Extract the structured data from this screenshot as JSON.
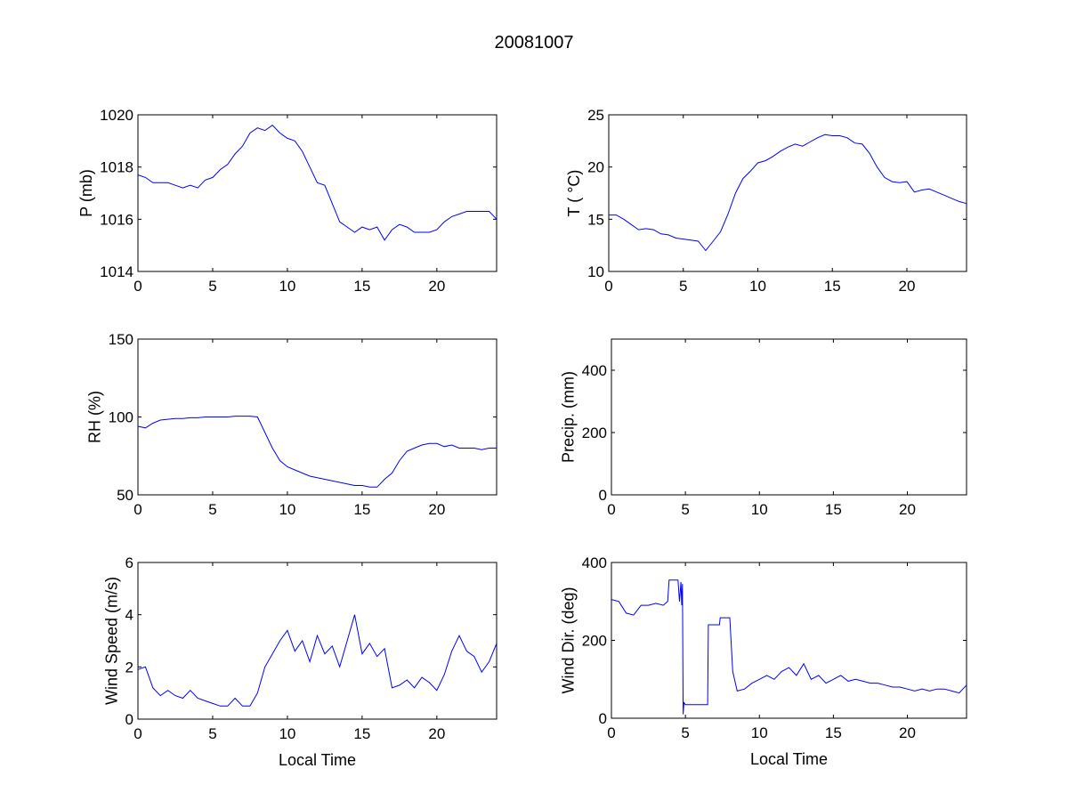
{
  "title": "20081007",
  "colors": {
    "line": "#0000ff",
    "axis": "#000000",
    "background": "#ffffff"
  },
  "chart_data": [
    {
      "type": "line",
      "name": "pressure",
      "ylabel": "P (mb)",
      "xlabel": "",
      "xlim": [
        0,
        24
      ],
      "ylim": [
        1014,
        1020
      ],
      "xticks": [
        0,
        5,
        10,
        15,
        20
      ],
      "yticks": [
        1014,
        1016,
        1018,
        1020
      ],
      "x": [
        0,
        0.5,
        1,
        1.5,
        2,
        2.5,
        3,
        3.5,
        4,
        4.5,
        5,
        5.5,
        6,
        6.5,
        7,
        7.5,
        8,
        8.5,
        9,
        9.5,
        10,
        10.5,
        11,
        11.5,
        12,
        12.5,
        13,
        13.5,
        14,
        14.5,
        15,
        15.5,
        16,
        16.5,
        17,
        17.5,
        18,
        18.5,
        19,
        19.5,
        20,
        20.5,
        21,
        21.5,
        22,
        22.5,
        23,
        23.5,
        24
      ],
      "y": [
        1017.7,
        1017.6,
        1017.4,
        1017.4,
        1017.4,
        1017.3,
        1017.2,
        1017.3,
        1017.2,
        1017.5,
        1017.6,
        1017.9,
        1018.1,
        1018.5,
        1018.8,
        1019.3,
        1019.5,
        1019.4,
        1019.6,
        1019.3,
        1019.1,
        1019.0,
        1018.6,
        1018.0,
        1017.4,
        1017.3,
        1016.6,
        1015.9,
        1015.7,
        1015.5,
        1015.7,
        1015.6,
        1015.7,
        1015.2,
        1015.6,
        1015.8,
        1015.7,
        1015.5,
        1015.5,
        1015.5,
        1015.6,
        1015.9,
        1016.1,
        1016.2,
        1016.3,
        1016.3,
        1016.3,
        1016.3,
        1016.0
      ]
    },
    {
      "type": "line",
      "name": "temperature",
      "ylabel": "T ( °C)",
      "xlabel": "",
      "xlim": [
        0,
        24
      ],
      "ylim": [
        10,
        25
      ],
      "xticks": [
        0,
        5,
        10,
        15,
        20
      ],
      "yticks": [
        10,
        15,
        20,
        25
      ],
      "x": [
        0,
        0.5,
        1,
        1.5,
        2,
        2.5,
        3,
        3.5,
        4,
        4.5,
        5,
        5.5,
        6,
        6.5,
        7,
        7.5,
        8,
        8.5,
        9,
        9.5,
        10,
        10.5,
        11,
        11.5,
        12,
        12.5,
        13,
        13.5,
        14,
        14.5,
        15,
        15.5,
        16,
        16.5,
        17,
        17.5,
        18,
        18.5,
        19,
        19.5,
        20,
        20.5,
        21,
        21.5,
        22,
        22.5,
        23,
        23.5,
        24
      ],
      "y": [
        15.4,
        15.4,
        15.0,
        14.5,
        14.0,
        14.1,
        14.0,
        13.6,
        13.5,
        13.2,
        13.1,
        13.0,
        12.9,
        12.0,
        12.9,
        13.8,
        15.5,
        17.5,
        18.9,
        19.6,
        20.4,
        20.6,
        21.0,
        21.5,
        21.9,
        22.2,
        22.0,
        22.4,
        22.8,
        23.1,
        23.0,
        23.0,
        22.8,
        22.3,
        22.2,
        21.3,
        20.0,
        19.0,
        18.6,
        18.5,
        18.6,
        17.6,
        17.8,
        17.9,
        17.6,
        17.3,
        17.0,
        16.7,
        16.5
      ]
    },
    {
      "type": "line",
      "name": "relative-humidity",
      "ylabel": "RH (%)",
      "xlabel": "",
      "xlim": [
        0,
        24
      ],
      "ylim": [
        50,
        150
      ],
      "xticks": [
        0,
        5,
        10,
        15,
        20
      ],
      "yticks": [
        50,
        100,
        150
      ],
      "x": [
        0,
        0.5,
        1,
        1.5,
        2,
        2.5,
        3,
        3.5,
        4,
        4.5,
        5,
        5.5,
        6,
        6.5,
        7,
        7.5,
        8,
        8.5,
        9,
        9.5,
        10,
        10.5,
        11,
        11.5,
        12,
        12.5,
        13,
        13.5,
        14,
        14.5,
        15,
        15.5,
        16,
        16.5,
        17,
        17.5,
        18,
        18.5,
        19,
        19.5,
        20,
        20.5,
        21,
        21.5,
        22,
        22.5,
        23,
        23.5,
        24
      ],
      "y": [
        94,
        93,
        96,
        98,
        98.5,
        99,
        99,
        99.5,
        99.5,
        100,
        100,
        100,
        100,
        100.5,
        100.5,
        100.5,
        100,
        90,
        80,
        72,
        68,
        66,
        64,
        62,
        61,
        60,
        59,
        58,
        57,
        56,
        56,
        55,
        55,
        60,
        64,
        72,
        78,
        80,
        82,
        83,
        83,
        81,
        82,
        80,
        80,
        80,
        79,
        80,
        80
      ]
    },
    {
      "type": "line",
      "name": "precipitation",
      "ylabel": "Precip. (mm)",
      "xlabel": "",
      "xlim": [
        0,
        24
      ],
      "ylim": [
        0,
        500
      ],
      "xticks": [
        0,
        5,
        10,
        15,
        20
      ],
      "yticks": [
        0,
        200,
        400
      ],
      "x": [],
      "y": []
    },
    {
      "type": "line",
      "name": "wind-speed",
      "ylabel": "Wind Speed (m/s)",
      "xlabel": "Local Time",
      "xlim": [
        0,
        24
      ],
      "ylim": [
        0,
        6
      ],
      "xticks": [
        0,
        5,
        10,
        15,
        20
      ],
      "yticks": [
        0,
        2,
        4,
        6
      ],
      "x": [
        0,
        0.5,
        1,
        1.5,
        2,
        2.5,
        3,
        3.5,
        4,
        4.5,
        5,
        5.5,
        6,
        6.5,
        7,
        7.5,
        8,
        8.5,
        9,
        9.5,
        10,
        10.5,
        11,
        11.5,
        12,
        12.5,
        13,
        13.5,
        14,
        14.5,
        15,
        15.5,
        16,
        16.5,
        17,
        17.5,
        18,
        18.5,
        19,
        19.5,
        20,
        20.5,
        21,
        21.5,
        22,
        22.5,
        23,
        23.5,
        24
      ],
      "y": [
        1.9,
        2.0,
        1.2,
        0.9,
        1.1,
        0.9,
        0.8,
        1.1,
        0.8,
        0.7,
        0.6,
        0.5,
        0.5,
        0.8,
        0.5,
        0.5,
        1.0,
        2.0,
        2.5,
        3.0,
        3.4,
        2.6,
        3.0,
        2.2,
        3.2,
        2.5,
        2.8,
        2.0,
        3.0,
        4.0,
        2.5,
        2.9,
        2.4,
        2.7,
        1.2,
        1.3,
        1.5,
        1.2,
        1.6,
        1.4,
        1.1,
        1.7,
        2.6,
        3.2,
        2.6,
        2.4,
        1.8,
        2.2,
        2.9
      ]
    },
    {
      "type": "line",
      "name": "wind-direction",
      "ylabel": "Wind Dir. (deg)",
      "xlabel": "Local Time",
      "xlim": [
        0,
        24
      ],
      "ylim": [
        0,
        400
      ],
      "xticks": [
        0,
        5,
        10,
        15,
        20
      ],
      "yticks": [
        0,
        200,
        400
      ],
      "x": [
        0,
        0.5,
        1,
        1.5,
        2,
        2.5,
        3,
        3.5,
        3.8,
        3.9,
        4.5,
        4.6,
        4.7,
        4.75,
        4.8,
        4.85,
        4.9,
        5,
        6.5,
        6.55,
        7.3,
        7.35,
        8.0,
        8.2,
        8.5,
        9,
        9.5,
        10,
        10.5,
        11,
        11.5,
        12,
        12.5,
        13,
        13.5,
        14,
        14.5,
        15,
        15.5,
        16,
        16.5,
        17,
        17.5,
        18,
        18.5,
        19,
        19.5,
        20,
        20.5,
        21,
        21.5,
        22,
        22.5,
        23,
        23.5,
        24
      ],
      "y": [
        305,
        300,
        270,
        265,
        290,
        290,
        295,
        290,
        300,
        355,
        355,
        300,
        350,
        290,
        345,
        10,
        40,
        35,
        35,
        240,
        240,
        258,
        258,
        120,
        70,
        75,
        90,
        100,
        110,
        100,
        120,
        130,
        110,
        140,
        100,
        110,
        90,
        100,
        110,
        95,
        100,
        95,
        90,
        90,
        85,
        80,
        80,
        75,
        70,
        75,
        70,
        75,
        75,
        70,
        65,
        85
      ]
    }
  ]
}
